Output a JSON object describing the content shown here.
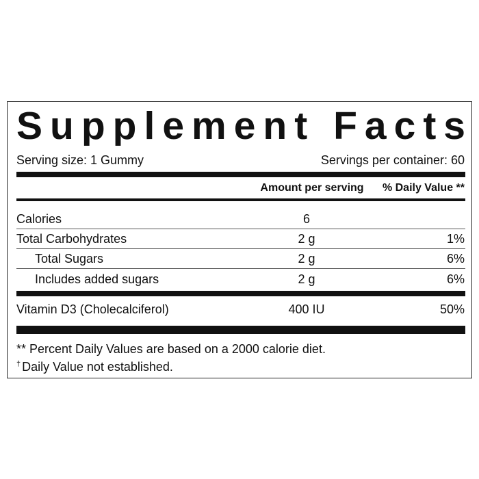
{
  "header": {
    "title": "Supplement Facts"
  },
  "serving": {
    "size": "Serving size: 1 Gummy",
    "per_container": "Servings per container: 60"
  },
  "columns": {
    "amount": "Amount per serving",
    "daily_value": "% Daily Value **"
  },
  "rows": [
    {
      "name": "Calories",
      "amount": "6"
    },
    {
      "name": "Total Carbohydrates",
      "amount": "2 g",
      "daily_value": "1%"
    },
    {
      "name": "Total Sugars",
      "amount": "2 g",
      "daily_value": "6%",
      "indented": true
    },
    {
      "name": "Includes added sugars",
      "amount": "2 g",
      "daily_value": "6%",
      "indented": true
    },
    {
      "name": "Vitamin D3 (Cholecalciferol)",
      "amount": "400 IU",
      "daily_value": "50%"
    }
  ],
  "footnotes": [
    {
      "text": "** Percent Daily Values are based on a 2000 calorie diet."
    },
    {
      "symbol": "†",
      "text": "Daily Value not established."
    }
  ]
}
